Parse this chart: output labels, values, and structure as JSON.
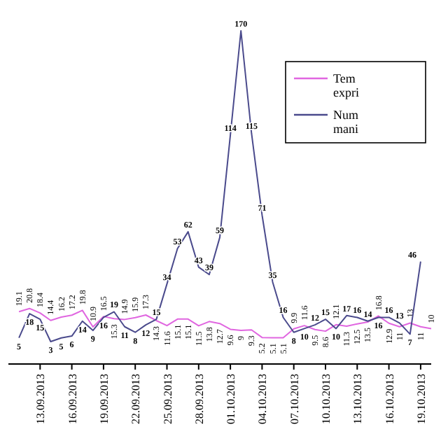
{
  "chart_data": {
    "type": "line",
    "x": [
      "2013-09-11",
      "2013-09-12",
      "2013-09-13",
      "2013-09-14",
      "2013-09-15",
      "2013-09-16",
      "2013-09-17",
      "2013-09-18",
      "2013-09-19",
      "2013-09-20",
      "2013-09-21",
      "2013-09-22",
      "2013-09-23",
      "2013-09-24",
      "2013-09-25",
      "2013-09-26",
      "2013-09-27",
      "2013-09-28",
      "2013-09-29",
      "2013-09-30",
      "2013-10-01",
      "2013-10-02",
      "2013-10-03",
      "2013-10-04",
      "2013-10-05",
      "2013-10-06",
      "2013-10-07",
      "2013-10-08",
      "2013-10-09",
      "2013-10-10",
      "2013-10-11",
      "2013-10-12",
      "2013-10-13",
      "2013-10-14",
      "2013-10-15",
      "2013-10-16",
      "2013-10-17",
      "2013-10-18",
      "2013-10-19",
      "2013-10-20"
    ],
    "series": [
      {
        "name": "Tem\nexpri",
        "color": "#e066e0",
        "values": [
          19.1,
          20.8,
          18.4,
          14.4,
          16.2,
          17.2,
          19.8,
          10.9,
          16.5,
          15.3,
          14.9,
          15.9,
          17.3,
          14.3,
          11.6,
          15.1,
          15.1,
          11.5,
          13.8,
          12.7,
          9.6,
          9.0,
          9.3,
          5.2,
          5.1,
          5.1,
          9.9,
          11.6,
          9.5,
          8.6,
          12.1,
          11.3,
          12.5,
          13.5,
          16.8,
          12.9,
          11,
          13,
          11,
          10
        ]
      },
      {
        "name": "Num\nmani",
        "color": "#4a4a8c",
        "values": [
          5,
          18,
          15,
          3,
          5,
          6,
          14,
          9,
          16,
          19,
          11,
          8,
          12,
          15,
          34,
          53,
          62,
          43,
          39,
          59,
          114,
          170,
          115,
          71,
          35,
          16,
          8,
          10,
          12,
          15,
          10,
          17,
          16,
          14,
          16,
          16,
          13,
          7,
          46,
          null
        ]
      }
    ],
    "xlim": [
      "2013-09-10",
      "2013-10-20"
    ],
    "xticks": [
      {
        "value": "2013-09-13",
        "label": "13.09.2013"
      },
      {
        "value": "2013-09-16",
        "label": "16.09.2013"
      },
      {
        "value": "2013-09-19",
        "label": "19.09.2013"
      },
      {
        "value": "2013-09-22",
        "label": "22.09.2013"
      },
      {
        "value": "2013-09-25",
        "label": "25.09.2013"
      },
      {
        "value": "2013-09-28",
        "label": "28.09.2013"
      },
      {
        "value": "2013-10-01",
        "label": "01.10.2013"
      },
      {
        "value": "2013-10-04",
        "label": "04.10.2013"
      },
      {
        "value": "2013-10-07",
        "label": "07.10.2013"
      },
      {
        "value": "2013-10-10",
        "label": "10.10.2013"
      },
      {
        "value": "2013-10-13",
        "label": "13.10.2013"
      },
      {
        "value": "2013-10-16",
        "label": "16.10.2013"
      },
      {
        "value": "2013-10-19",
        "label": "19.10.2013"
      }
    ],
    "data_labels": true,
    "legend": "top right",
    "grid": false,
    "marker": "none",
    "line_style": "solid"
  }
}
